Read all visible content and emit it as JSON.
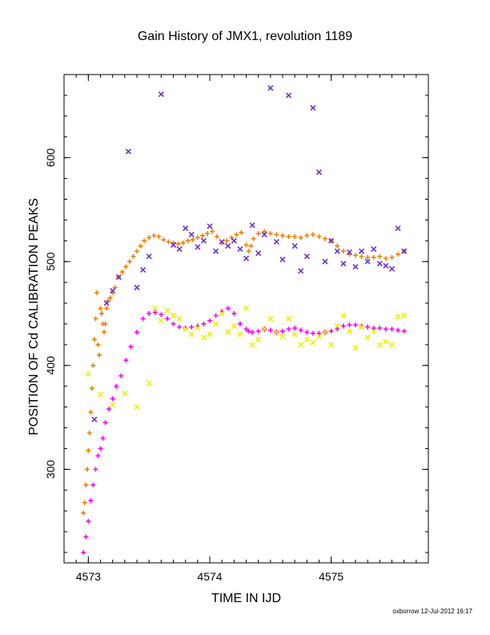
{
  "chart_data": {
    "type": "scatter",
    "title": "Gain History of JMX1, revolution 1189",
    "xlabel": "TIME IN IJD",
    "ylabel": "POSITION OF Cd CALIBRATION PEAKS",
    "xlim": [
      4572.8,
      4575.8
    ],
    "ylim": [
      210,
      680
    ],
    "xticks": [
      4573,
      4574,
      4575
    ],
    "yticks": [
      300,
      400,
      500,
      600
    ],
    "grid": false,
    "legend": "none",
    "series": [
      {
        "color": "#f08000",
        "marker": "plus",
        "x": [
          4572.96,
          4572.97,
          4572.98,
          4572.99,
          4573.0,
          4573.01,
          4573.02,
          4573.03,
          4573.04,
          4573.05,
          4573.06,
          4573.07,
          4573.08,
          4573.09,
          4573.1,
          4573.11,
          4573.12,
          4573.13,
          4573.14,
          4573.15,
          4573.16,
          4573.18,
          4573.2,
          4573.22,
          4573.25,
          4573.28,
          4573.31,
          4573.34,
          4573.37,
          4573.4,
          4573.43,
          4573.46,
          4573.5,
          4573.54,
          4573.58,
          4573.62,
          4573.66,
          4573.7,
          4573.74,
          4573.78,
          4573.82,
          4573.86,
          4573.9,
          4573.94,
          4573.98,
          4574.02,
          4574.06,
          4574.1,
          4574.14,
          4574.18,
          4574.22,
          4574.26,
          4574.3,
          4574.32,
          4574.34,
          4574.36,
          4574.4,
          4574.45,
          4574.5,
          4574.55,
          4574.6,
          4574.65,
          4574.7,
          4574.75,
          4574.8,
          4574.85,
          4574.9,
          4574.95,
          4575.0,
          4575.05,
          4575.1,
          4575.15,
          4575.2,
          4575.25,
          4575.3,
          4575.35,
          4575.4,
          4575.45,
          4575.5,
          4575.55,
          4575.6
        ],
        "y": [
          258,
          268,
          285,
          300,
          318,
          335,
          355,
          378,
          400,
          425,
          445,
          470,
          420,
          410,
          455,
          450,
          440,
          432,
          440,
          455,
          462,
          465,
          470,
          475,
          485,
          490,
          495,
          500,
          505,
          510,
          515,
          520,
          523,
          525,
          524,
          521,
          519,
          518,
          517,
          518,
          520,
          521,
          523,
          525,
          527,
          529,
          524,
          518,
          520,
          523,
          526,
          528,
          516,
          510,
          515,
          522,
          527,
          529,
          527,
          526,
          525,
          524,
          524,
          523,
          525,
          526,
          524,
          522,
          520,
          515,
          510,
          507,
          506,
          505,
          504,
          504,
          505,
          503,
          504,
          507,
          510
        ]
      },
      {
        "color": "#ff00ff",
        "marker": "plus",
        "x": [
          4572.96,
          4572.98,
          4573.0,
          4573.02,
          4573.04,
          4573.06,
          4573.08,
          4573.1,
          4573.12,
          4573.14,
          4573.17,
          4573.2,
          4573.23,
          4573.27,
          4573.31,
          4573.35,
          4573.4,
          4573.45,
          4573.5,
          4573.55,
          4573.6,
          4573.65,
          4573.7,
          4573.75,
          4573.8,
          4573.85,
          4573.9,
          4573.95,
          4574.0,
          4574.05,
          4574.1,
          4574.15,
          4574.2,
          4574.25,
          4574.3,
          4574.32,
          4574.35,
          4574.4,
          4574.45,
          4574.5,
          4574.55,
          4574.6,
          4574.65,
          4574.7,
          4574.75,
          4574.8,
          4574.85,
          4574.9,
          4574.95,
          4575.0,
          4575.05,
          4575.1,
          4575.15,
          4575.2,
          4575.25,
          4575.3,
          4575.35,
          4575.4,
          4575.45,
          4575.5,
          4575.55,
          4575.6
        ],
        "y": [
          220,
          235,
          250,
          270,
          285,
          300,
          313,
          320,
          330,
          345,
          358,
          368,
          380,
          390,
          405,
          418,
          432,
          445,
          450,
          451,
          449,
          445,
          440,
          437,
          436,
          437,
          438,
          440,
          443,
          448,
          452,
          455,
          450,
          440,
          435,
          433,
          432,
          433,
          435,
          434,
          432,
          433,
          435,
          436,
          434,
          432,
          431,
          431,
          432,
          433,
          435,
          438,
          439,
          439,
          438,
          437,
          436,
          436,
          435,
          435,
          434,
          433
        ]
      },
      {
        "color": "#7030d0",
        "marker": "x",
        "x": [
          4573.05,
          4573.15,
          4573.2,
          4573.25,
          4573.33,
          4573.4,
          4573.45,
          4573.5,
          4573.6,
          4573.7,
          4573.75,
          4573.8,
          4573.85,
          4573.9,
          4573.95,
          4574.0,
          4574.05,
          4574.1,
          4574.15,
          4574.2,
          4574.25,
          4574.3,
          4574.35,
          4574.4,
          4574.45,
          4574.5,
          4574.55,
          4574.6,
          4574.65,
          4574.7,
          4574.75,
          4574.8,
          4574.85,
          4574.9,
          4574.95,
          4575.0,
          4575.05,
          4575.1,
          4575.15,
          4575.2,
          4575.25,
          4575.3,
          4575.35,
          4575.4,
          4575.45,
          4575.5,
          4575.55,
          4575.6
        ],
        "y": [
          348,
          460,
          472,
          485,
          606,
          475,
          492,
          505,
          661,
          516,
          512,
          532,
          526,
          514,
          520,
          534,
          510,
          519,
          515,
          520,
          512,
          503,
          535,
          508,
          526,
          667,
          519,
          502,
          660,
          515,
          491,
          505,
          648,
          586,
          500,
          520,
          510,
          498,
          509,
          495,
          510,
          500,
          512,
          498,
          496,
          493,
          532,
          510
        ]
      },
      {
        "color": "#f0f000",
        "marker": "x",
        "x": [
          4573.0,
          4573.1,
          4573.2,
          4573.3,
          4573.4,
          4573.5,
          4573.55,
          4573.6,
          4573.65,
          4573.7,
          4573.75,
          4573.8,
          4573.85,
          4573.9,
          4573.95,
          4574.0,
          4574.05,
          4574.1,
          4574.15,
          4574.2,
          4574.25,
          4574.3,
          4574.35,
          4574.4,
          4574.45,
          4574.5,
          4574.55,
          4574.6,
          4574.65,
          4574.7,
          4574.75,
          4574.8,
          4574.85,
          4574.9,
          4574.95,
          4575.0,
          4575.05,
          4575.1,
          4575.15,
          4575.2,
          4575.25,
          4575.3,
          4575.35,
          4575.4,
          4575.45,
          4575.5,
          4575.55,
          4575.6
        ],
        "y": [
          392,
          372,
          362,
          373,
          360,
          383,
          455,
          443,
          453,
          448,
          445,
          435,
          430,
          436,
          427,
          430,
          440,
          450,
          432,
          438,
          430,
          455,
          420,
          425,
          435,
          445,
          432,
          428,
          445,
          430,
          420,
          425,
          422,
          428,
          432,
          420,
          438,
          448,
          433,
          417,
          437,
          427,
          433,
          420,
          423,
          420,
          447,
          448
        ]
      }
    ]
  },
  "footer": "oxborrow 12-Jul-2012 16:17"
}
